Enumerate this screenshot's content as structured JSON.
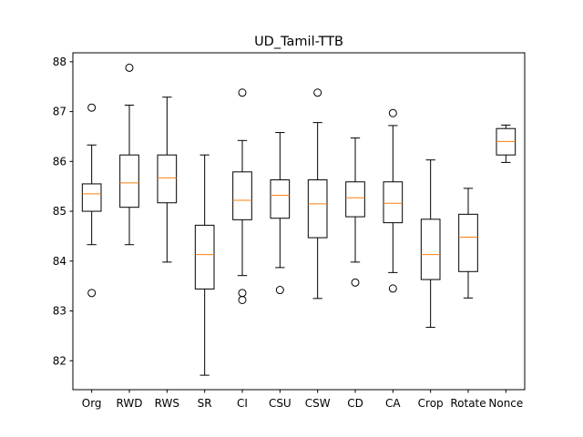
{
  "chart_data": {
    "type": "boxplot",
    "title": "UD_Tamil-TTB",
    "xlabel": "",
    "ylabel": "",
    "ylim": [
      81.42,
      88.18
    ],
    "yticks": [
      82,
      83,
      84,
      85,
      86,
      87,
      88
    ],
    "ytick_labels": [
      "82",
      "83",
      "84",
      "85",
      "86",
      "87",
      "88"
    ],
    "grid": false,
    "colors": {
      "box": "#000000",
      "median": "#ff7f0e",
      "flier": "#000000",
      "axes": "#000000"
    },
    "categories": [
      "Org",
      "RWD",
      "RWS",
      "SR",
      "CI",
      "CSU",
      "CSW",
      "CD",
      "CA",
      "Crop",
      "Rotate",
      "Nonce"
    ],
    "boxes": [
      {
        "label": "Org",
        "whisker_low": 84.33,
        "q1": 85.0,
        "median": 85.35,
        "q3": 85.55,
        "whisker_high": 86.33,
        "fliers": [
          87.08,
          83.36
        ]
      },
      {
        "label": "RWD",
        "whisker_low": 84.33,
        "q1": 85.08,
        "median": 85.57,
        "q3": 86.13,
        "whisker_high": 87.13,
        "fliers": [
          87.88
        ]
      },
      {
        "label": "RWS",
        "whisker_low": 83.98,
        "q1": 85.17,
        "median": 85.67,
        "q3": 86.13,
        "whisker_high": 87.29,
        "fliers": []
      },
      {
        "label": "SR",
        "whisker_low": 81.71,
        "q1": 83.44,
        "median": 84.13,
        "q3": 84.72,
        "whisker_high": 86.13,
        "fliers": []
      },
      {
        "label": "CI",
        "whisker_low": 83.71,
        "q1": 84.83,
        "median": 85.22,
        "q3": 85.79,
        "whisker_high": 86.42,
        "fliers": [
          87.38,
          83.36,
          83.22
        ]
      },
      {
        "label": "CSU",
        "whisker_low": 83.87,
        "q1": 84.86,
        "median": 85.32,
        "q3": 85.63,
        "whisker_high": 86.58,
        "fliers": [
          83.42
        ]
      },
      {
        "label": "CSW",
        "whisker_low": 83.25,
        "q1": 84.47,
        "median": 85.15,
        "q3": 85.63,
        "whisker_high": 86.78,
        "fliers": [
          87.38
        ]
      },
      {
        "label": "CD",
        "whisker_low": 83.98,
        "q1": 84.89,
        "median": 85.27,
        "q3": 85.59,
        "whisker_high": 86.47,
        "fliers": [
          83.57
        ]
      },
      {
        "label": "CA",
        "whisker_low": 83.77,
        "q1": 84.77,
        "median": 85.16,
        "q3": 85.59,
        "whisker_high": 86.72,
        "fliers": [
          86.97,
          83.45
        ]
      },
      {
        "label": "Crop",
        "whisker_low": 82.67,
        "q1": 83.63,
        "median": 84.13,
        "q3": 84.84,
        "whisker_high": 86.03,
        "fliers": []
      },
      {
        "label": "Rotate",
        "whisker_low": 83.26,
        "q1": 83.79,
        "median": 84.48,
        "q3": 84.94,
        "whisker_high": 85.46,
        "fliers": []
      },
      {
        "label": "Nonce",
        "whisker_low": 85.98,
        "q1": 86.13,
        "median": 86.4,
        "q3": 86.66,
        "whisker_high": 86.73,
        "fliers": []
      }
    ]
  }
}
